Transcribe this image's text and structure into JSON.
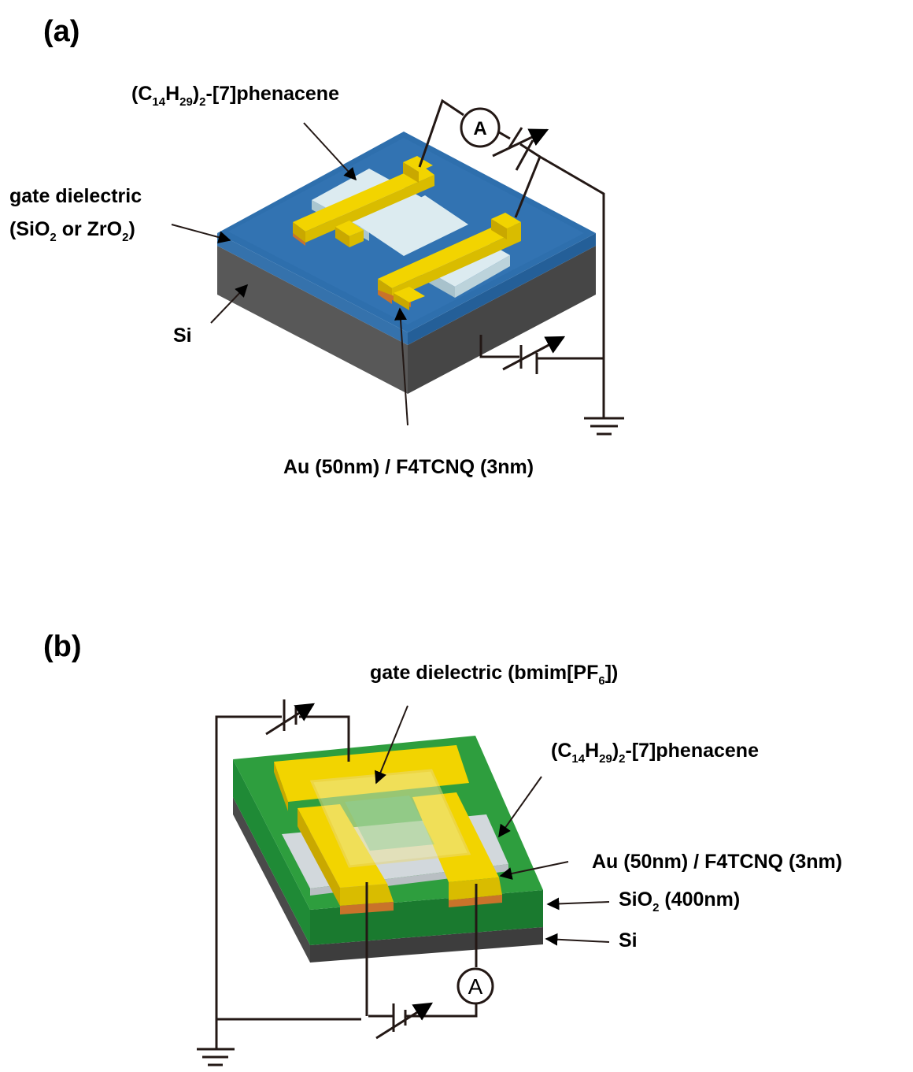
{
  "panel_a": {
    "label": "(a)",
    "molecule": {
      "paren_open": "(C",
      "c_sub": "14",
      "h": "H",
      "h_sub": "29",
      "paren_close": ")",
      "n_sub": "2",
      "rest": "-[7]phenacene"
    },
    "gate_line1": "gate dielectric",
    "gate_line2": {
      "a": "(SiO",
      "a_sub": "2",
      "b": " or ZrO",
      "b_sub": "2",
      "c": ")"
    },
    "substrate": "Si",
    "electrode": "Au (50nm) / F4TCNQ (3nm)",
    "meter": "A"
  },
  "panel_b": {
    "label": "(b)",
    "gate": {
      "a": "gate dielectric (bmim[PF",
      "a_sub": "6",
      "b": "])"
    },
    "molecule": {
      "paren_open": "(C",
      "c_sub": "14",
      "h": "H",
      "h_sub": "29",
      "paren_close": ")",
      "n_sub": "2",
      "rest": "-[7]phenacene"
    },
    "electrode": "Au (50nm) / F4TCNQ (3nm)",
    "oxide": {
      "a": "SiO",
      "a_sub": "2",
      "b": " (400nm)"
    },
    "substrate": "Si",
    "meter": "A"
  },
  "colors": {
    "blue_dielectric": "#2e6fad",
    "si_gray": "#5a5a5a",
    "gold": "#f2d400",
    "green_oxide": "#2e9e3e",
    "crystal": "#cfe4ea",
    "copper": "#c9732a"
  }
}
